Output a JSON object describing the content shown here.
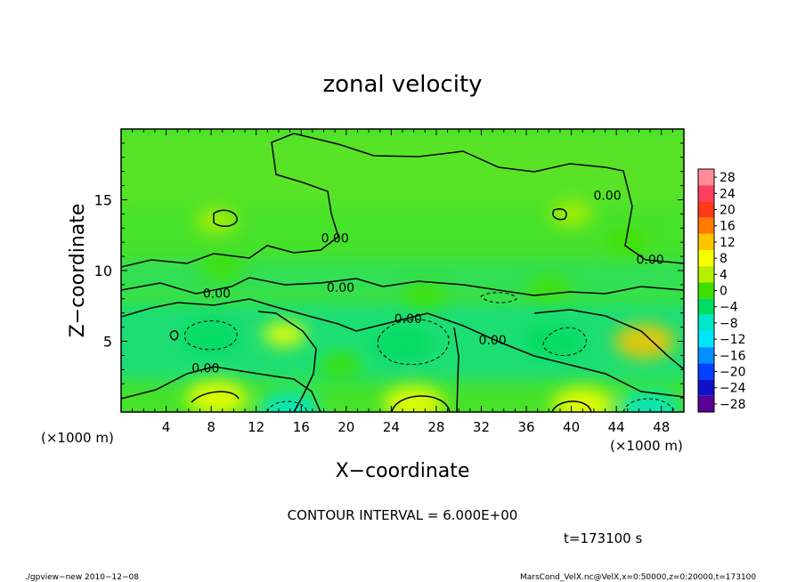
{
  "chart_data": {
    "type": "heatmap",
    "title": "zonal velocity",
    "xlabel": "X−coordinate",
    "ylabel": "Z−coordinate",
    "x_unit": "(×1000 m)",
    "y_unit": "(×1000 m)",
    "xlim": [
      0,
      50
    ],
    "ylim": [
      0,
      20
    ],
    "x_ticks": [
      4,
      8,
      12,
      16,
      20,
      24,
      28,
      32,
      36,
      40,
      44,
      48
    ],
    "y_ticks": [
      5,
      10,
      15
    ],
    "colorbar": {
      "levels": [
        28,
        24,
        20,
        16,
        12,
        8,
        4,
        0,
        -4,
        -8,
        -12,
        -16,
        -20,
        -24,
        -28
      ],
      "level_labels": [
        "28",
        "24",
        "20",
        "16",
        "12",
        "8",
        "4",
        "0",
        "−4",
        "−8",
        "−12",
        "−16",
        "−20",
        "−24",
        "−28"
      ],
      "colors": [
        "#ff8c96",
        "#ff4060",
        "#ff3a18",
        "#ff7c00",
        "#ffc400",
        "#f6ff00",
        "#b4f000",
        "#3fe000",
        "#00dc60",
        "#00e6c8",
        "#00e6ff",
        "#0090ff",
        "#0040ff",
        "#1010c8",
        "#5a0096"
      ]
    },
    "contour_labels": [
      {
        "text": "0.00",
        "x": 19.0,
        "z": 12.3
      },
      {
        "text": "0.00",
        "x": 8.5,
        "z": 8.4
      },
      {
        "text": "0.00",
        "x": 19.5,
        "z": 8.8
      },
      {
        "text": "0.00",
        "x": 43.2,
        "z": 15.3
      },
      {
        "text": "0.00",
        "x": 47.0,
        "z": 10.8
      },
      {
        "text": "0.00",
        "x": 25.5,
        "z": 6.6
      },
      {
        "text": "0.00",
        "x": 33.0,
        "z": 5.1
      },
      {
        "text": "0.00",
        "x": 7.5,
        "z": 3.1
      }
    ],
    "anomalies": [
      {
        "x": 8.0,
        "z": 5.3,
        "value": -8
      },
      {
        "x": 25.0,
        "z": 4.8,
        "value": -8
      },
      {
        "x": 38.5,
        "z": 5.0,
        "value": -8
      },
      {
        "x": 19.5,
        "z": 3.3,
        "value": -4
      },
      {
        "x": 46.5,
        "z": 5.0,
        "value": 8
      },
      {
        "x": 14.5,
        "z": 5.5,
        "value": 5
      },
      {
        "x": 8.5,
        "z": 1.0,
        "value": 6
      },
      {
        "x": 26.0,
        "z": 0.6,
        "value": 7
      },
      {
        "x": 41.0,
        "z": 0.5,
        "value": 6
      },
      {
        "x": 15.0,
        "z": 0.3,
        "value": -9
      },
      {
        "x": 47.0,
        "z": 0.3,
        "value": -10
      },
      {
        "x": 9.0,
        "z": 10.2,
        "value": -3
      },
      {
        "x": 27.0,
        "z": 8.3,
        "value": -3
      },
      {
        "x": 38.0,
        "z": 8.8,
        "value": -2
      },
      {
        "x": 45.0,
        "z": 12.0,
        "value": -4
      },
      {
        "x": 40.0,
        "z": 14.0,
        "value": 1
      },
      {
        "x": 8.5,
        "z": 13.5,
        "value": 1
      }
    ]
  },
  "annotations": {
    "contour_interval": "CONTOUR INTERVAL = 6.000E+00",
    "time": "t=173100 s",
    "program": "./gpview−new   2010−12−08",
    "source": "MarsCond_VelX.nc@VelX,x=0:50000,z=0:20000,t=173100"
  }
}
